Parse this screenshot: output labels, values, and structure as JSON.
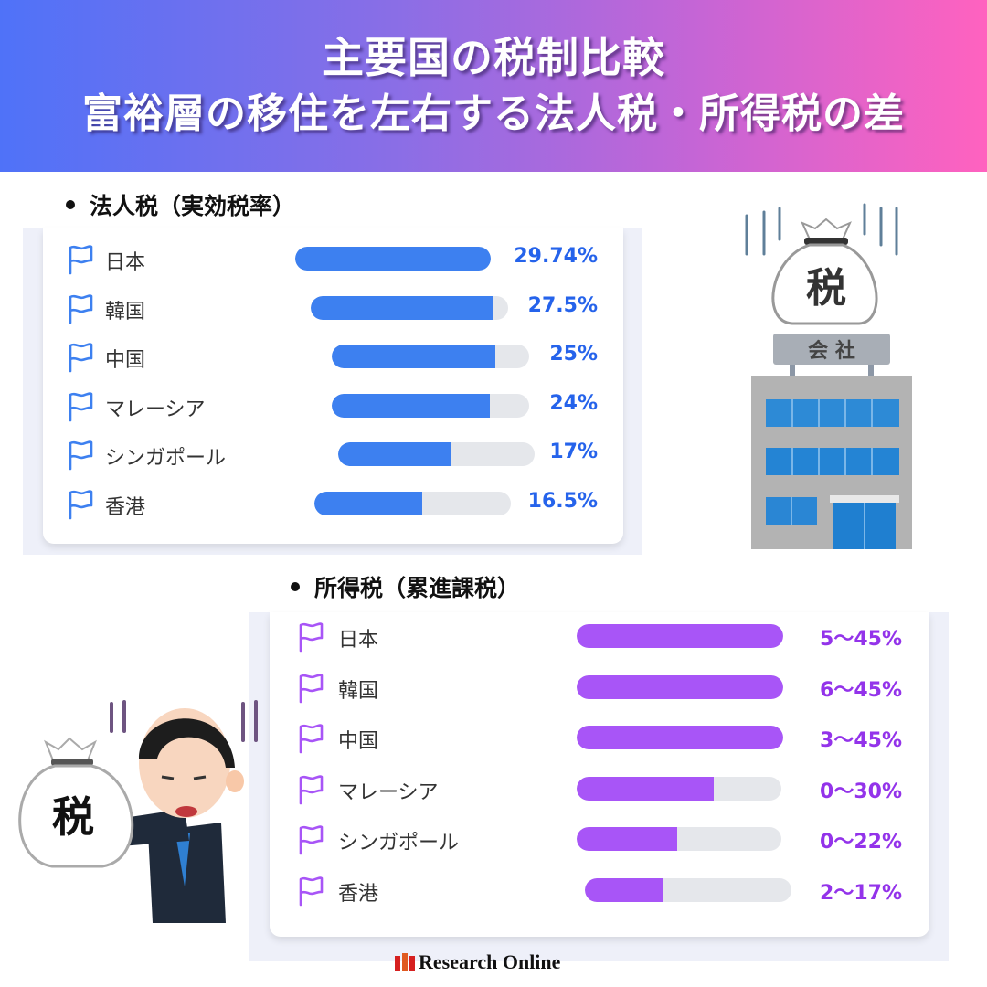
{
  "header": {
    "title_line1": "主要国の税制比較",
    "title_line2": "富裕層の移住を左右する法人税・所得税の差",
    "gradient": [
      "#4f72f8",
      "#8a6ee6",
      "#c465d6",
      "#ff62bf"
    ]
  },
  "corporate": {
    "title": "法人税（実効税率）",
    "bar_color": "#3d80f0",
    "value_color": "#2563eb",
    "track_color": "#e5e7eb",
    "rows": [
      {
        "country": "日本",
        "label": "29.74%",
        "value": 29.74
      },
      {
        "country": "韓国",
        "label": "27.5%",
        "value": 27.5
      },
      {
        "country": "中国",
        "label": "25%",
        "value": 25
      },
      {
        "country": "マレーシア",
        "label": "24%",
        "value": 24
      },
      {
        "country": "シンガポール",
        "label": "17%",
        "value": 17
      },
      {
        "country": "香港",
        "label": "16.5%",
        "value": 16.5
      }
    ]
  },
  "income": {
    "title": "所得税（累進課税）",
    "bar_color": "#a855f7",
    "value_color": "#9333ea",
    "track_color": "#e5e7eb",
    "rows": [
      {
        "country": "日本",
        "label": "5〜45%",
        "min": 5,
        "max": 45
      },
      {
        "country": "韓国",
        "label": "6〜45%",
        "min": 6,
        "max": 45
      },
      {
        "country": "中国",
        "label": "3〜45%",
        "min": 3,
        "max": 45
      },
      {
        "country": "マレーシア",
        "label": "0〜30%",
        "min": 0,
        "max": 30
      },
      {
        "country": "シンガポール",
        "label": "0〜22%",
        "min": 0,
        "max": 22
      },
      {
        "country": "香港",
        "label": "2〜17%",
        "min": 2,
        "max": 17
      }
    ]
  },
  "illustrations": {
    "building_bag_text": "税",
    "building_sign_text": "会 社",
    "man_bag_text": "税"
  },
  "footer": {
    "logo_text": "Research Online"
  },
  "chart_data": [
    {
      "type": "bar",
      "orientation": "horizontal",
      "title": "法人税（実効税率）",
      "categories": [
        "日本",
        "韓国",
        "中国",
        "マレーシア",
        "シンガポール",
        "香港"
      ],
      "values": [
        29.74,
        27.5,
        25,
        24,
        17,
        16.5
      ],
      "value_labels": [
        "29.74%",
        "27.5%",
        "25%",
        "24%",
        "17%",
        "16.5%"
      ],
      "unit": "%",
      "grid": false,
      "legend": null
    },
    {
      "type": "bar",
      "orientation": "horizontal",
      "title": "所得税（累進課税）",
      "categories": [
        "日本",
        "韓国",
        "中国",
        "マレーシア",
        "シンガポール",
        "香港"
      ],
      "series": [
        {
          "name": "min",
          "values": [
            5,
            6,
            3,
            0,
            0,
            2
          ]
        },
        {
          "name": "max",
          "values": [
            45,
            45,
            45,
            30,
            22,
            17
          ]
        }
      ],
      "value_labels": [
        "5〜45%",
        "6〜45%",
        "3〜45%",
        "0〜30%",
        "0〜22%",
        "2〜17%"
      ],
      "unit": "%",
      "grid": false,
      "legend": null
    }
  ]
}
